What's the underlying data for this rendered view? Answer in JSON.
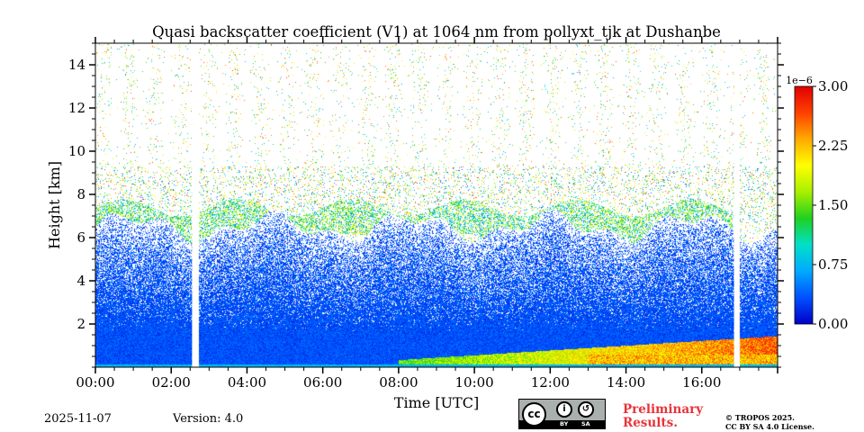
{
  "chart_data": {
    "type": "heatmap",
    "title": "Quasi backscatter coefficient (V1) at 1064 nm from pollyxt_tjk at Dushanbe",
    "xlabel": "Time [UTC]",
    "ylabel": "Height [km]",
    "x_unit": "hours UTC",
    "xlim": [
      0,
      18
    ],
    "ylim": [
      0,
      15
    ],
    "x_ticks": [
      {
        "value": 0,
        "label": "00:00"
      },
      {
        "value": 2,
        "label": "02:00"
      },
      {
        "value": 4,
        "label": "04:00"
      },
      {
        "value": 6,
        "label": "06:00"
      },
      {
        "value": 8,
        "label": "08:00"
      },
      {
        "value": 10,
        "label": "10:00"
      },
      {
        "value": 12,
        "label": "12:00"
      },
      {
        "value": 14,
        "label": "14:00"
      },
      {
        "value": 16,
        "label": "16:00"
      }
    ],
    "y_ticks": [
      {
        "value": 2,
        "label": "2"
      },
      {
        "value": 4,
        "label": "4"
      },
      {
        "value": 6,
        "label": "6"
      },
      {
        "value": 8,
        "label": "8"
      },
      {
        "value": 10,
        "label": "10"
      },
      {
        "value": 12,
        "label": "12"
      },
      {
        "value": 14,
        "label": "14"
      }
    ],
    "colorbar": {
      "min": 0,
      "max": 3e-06,
      "exponent_label": "1e−6",
      "ticks": [
        {
          "value": 0.0,
          "label": "0.00"
        },
        {
          "value": 0.75,
          "label": "0.75"
        },
        {
          "value": 1.5,
          "label": "1.50"
        },
        {
          "value": 2.25,
          "label": "2.25"
        },
        {
          "value": 3.0,
          "label": "3.00"
        }
      ],
      "colors": [
        "#0000c8",
        "#0050ff",
        "#00aaff",
        "#00e0c8",
        "#20d020",
        "#a8f000",
        "#ffff00",
        "#ffaa00",
        "#ff4000",
        "#e00000"
      ]
    },
    "data_gaps_hours": [
      [
        2.55,
        2.72
      ],
      [
        16.85,
        16.98
      ]
    ],
    "features": {
      "boundary_layer_top_km": 1.5,
      "aerosol_layer_top_km": 6.5,
      "cloud_layer_km": [
        5.8,
        9.0
      ],
      "elevated_layer_after_hour": 8.0
    }
  },
  "footer": {
    "date": "2025-11-07",
    "version": "Version: 4.0",
    "license_badge": {
      "cc": "cc",
      "by": "BY",
      "sa": "SA"
    },
    "preliminary_line1": "Preliminary",
    "preliminary_line2": "Results.",
    "copyright_line1": "© TROPOS 2025.",
    "copyright_line2": "CC BY SA 4.0 License."
  }
}
